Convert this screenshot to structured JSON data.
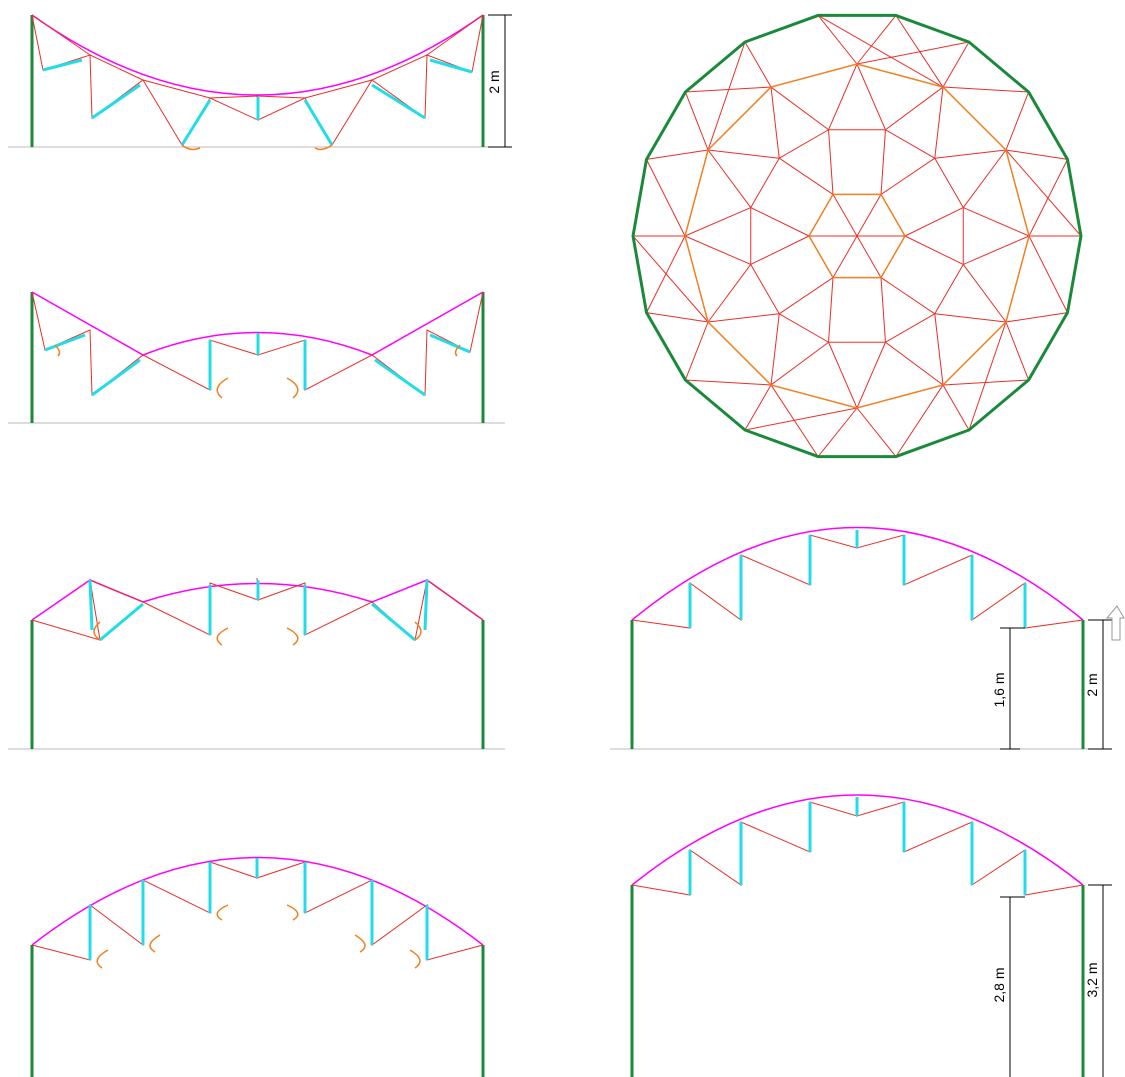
{
  "panels": {
    "top_left": {
      "dimension": "2 m"
    },
    "right_middle": {
      "dimensions": [
        "1,6 m",
        "2 m"
      ]
    },
    "right_bottom": {
      "dimensions": [
        "2,8 m",
        "3,2 m"
      ]
    }
  }
}
